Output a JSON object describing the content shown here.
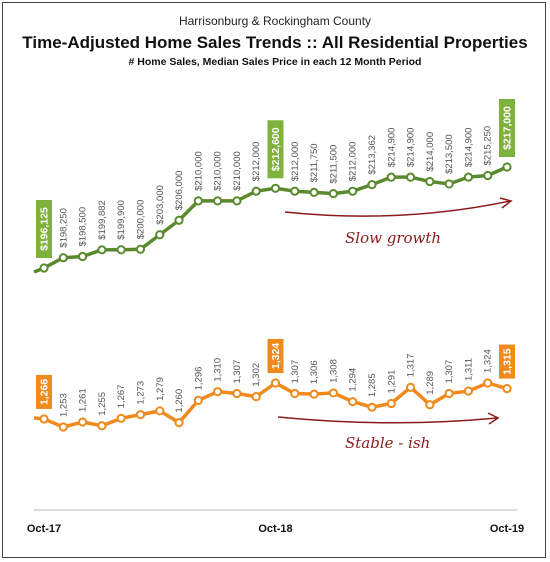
{
  "header": {
    "region": "Harrisonburg & Rockingham County",
    "title": "Time-Adjusted Home Sales Trends  ::  All Residential Properties",
    "subtitle": "# Home Sales, Median Sales Price in each 12 Month Period"
  },
  "chart_data": [
    {
      "type": "line",
      "name": "price",
      "x": [
        "Oct-17",
        "Nov-17",
        "Dec-17",
        "Jan-18",
        "Feb-18",
        "Mar-18",
        "Apr-18",
        "May-18",
        "Jun-18",
        "Jul-18",
        "Aug-18",
        "Sep-18",
        "Oct-18",
        "Nov-18",
        "Dec-18",
        "Jan-19",
        "Feb-19",
        "Mar-19",
        "Apr-19",
        "May-19",
        "Jun-19",
        "Jul-19",
        "Aug-19",
        "Sep-19",
        "Oct-19"
      ],
      "x_tick_labels": {
        "0": "Oct-17",
        "12": "Oct-18",
        "24": "Oct-19"
      },
      "values": [
        196125,
        198250,
        198500,
        199882,
        199900,
        200000,
        203000,
        206000,
        210000,
        210000,
        210000,
        212000,
        212600,
        212000,
        211750,
        211500,
        212000,
        213362,
        214900,
        214900,
        214000,
        213500,
        214900,
        215250,
        217000
      ],
      "labels": [
        "$196,125",
        "$198,250",
        "$198,500",
        "$199,882",
        "$199,900",
        "$200,000",
        "$203,000",
        "$206,000",
        "$210,000",
        "$210,000",
        "$210,000",
        "$212,000",
        "$212,600",
        "$212,000",
        "$211,750",
        "$211,500",
        "$212,000",
        "$213,362",
        "$214,900",
        "$214,900",
        "$214,000",
        "$213,500",
        "$214,900",
        "$215,250",
        "$217,000"
      ],
      "highlight_indices": [
        0,
        12,
        24
      ],
      "color": "#5a8a2e",
      "highlight_color": "#7fb23a",
      "annotation": "Slow growth"
    },
    {
      "type": "line",
      "name": "sales",
      "x": [
        "Oct-17",
        "Nov-17",
        "Dec-17",
        "Jan-18",
        "Feb-18",
        "Mar-18",
        "Apr-18",
        "May-18",
        "Jun-18",
        "Jul-18",
        "Aug-18",
        "Sep-18",
        "Oct-18",
        "Nov-18",
        "Dec-18",
        "Jan-19",
        "Feb-19",
        "Mar-19",
        "Apr-19",
        "May-19",
        "Jun-19",
        "Jul-19",
        "Aug-19",
        "Sep-19",
        "Oct-19"
      ],
      "x_tick_labels": {
        "0": "Oct-17",
        "12": "Oct-18",
        "24": "Oct-19"
      },
      "values": [
        1266,
        1253,
        1261,
        1255,
        1267,
        1273,
        1279,
        1260,
        1296,
        1310,
        1307,
        1302,
        1324,
        1307,
        1306,
        1308,
        1294,
        1285,
        1291,
        1317,
        1289,
        1307,
        1311,
        1324,
        1315
      ],
      "labels": [
        "1,266",
        "1,253",
        "1,261",
        "1,255",
        "1,267",
        "1,273",
        "1,279",
        "1,260",
        "1,296",
        "1,310",
        "1,307",
        "1,302",
        "1,324",
        "1,307",
        "1,306",
        "1,308",
        "1,294",
        "1,285",
        "1,291",
        "1,317",
        "1,289",
        "1,307",
        "1,311",
        "1,324",
        "1,315"
      ],
      "highlight_indices": [
        0,
        12,
        24
      ],
      "color": "#f08a1c",
      "highlight_color": "#f08a1c",
      "annotation": "Stable - ish"
    }
  ]
}
